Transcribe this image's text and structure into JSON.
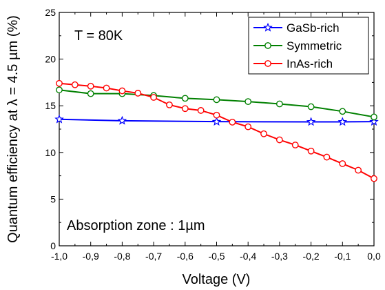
{
  "chart_data": {
    "type": "line",
    "xlabel": "Voltage (V)",
    "ylabel": "Quantum efficiency at λ = 4.5 µm (%)",
    "xlim": [
      -1.0,
      0.0
    ],
    "ylim": [
      0,
      25
    ],
    "xticks": [
      -1.0,
      -0.9,
      -0.8,
      -0.7,
      -0.6,
      -0.5,
      -0.4,
      -0.3,
      -0.2,
      -0.1,
      0.0
    ],
    "xtick_labels": [
      "-1,0",
      "-0,9",
      "-0,8",
      "-0,7",
      "-0,6",
      "-0,5",
      "-0,4",
      "-0,3",
      "-0,2",
      "-0,1",
      "0,0"
    ],
    "yticks": [
      0,
      5,
      10,
      15,
      20,
      25
    ],
    "ytick_labels": [
      "0",
      "5",
      "10",
      "15",
      "20",
      "25"
    ],
    "grid": false,
    "legend_position": "top-right",
    "annotations": [
      "T = 80K",
      "Absorption zone : 1µm"
    ],
    "series": [
      {
        "name": "GaSb-rich",
        "color": "#0000ff",
        "marker": "star",
        "line": [
          [
            -1.0,
            13.55
          ],
          [
            -0.8,
            13.4
          ],
          [
            -0.5,
            13.3
          ],
          [
            -0.2,
            13.28
          ],
          [
            -0.1,
            13.28
          ],
          [
            0.0,
            13.3
          ]
        ],
        "points": [
          [
            -1.0,
            13.55
          ],
          [
            -0.8,
            13.4
          ],
          [
            -0.5,
            13.3
          ],
          [
            -0.2,
            13.28
          ],
          [
            -0.1,
            13.28
          ],
          [
            0.0,
            13.3
          ]
        ]
      },
      {
        "name": "Symmetric",
        "color": "#008000",
        "marker": "circle",
        "line": [
          [
            -1.0,
            16.7
          ],
          [
            -0.9,
            16.3
          ],
          [
            -0.8,
            16.3
          ],
          [
            -0.7,
            16.1
          ],
          [
            -0.6,
            15.8
          ],
          [
            -0.5,
            15.65
          ],
          [
            -0.4,
            15.45
          ],
          [
            -0.3,
            15.2
          ],
          [
            -0.2,
            14.9
          ],
          [
            -0.1,
            14.4
          ],
          [
            0.0,
            13.8
          ]
        ],
        "points": [
          [
            -1.0,
            16.7
          ],
          [
            -0.9,
            16.3
          ],
          [
            -0.8,
            16.3
          ],
          [
            -0.7,
            16.1
          ],
          [
            -0.6,
            15.8
          ],
          [
            -0.5,
            15.65
          ],
          [
            -0.4,
            15.45
          ],
          [
            -0.3,
            15.2
          ],
          [
            -0.2,
            14.9
          ],
          [
            -0.1,
            14.4
          ],
          [
            0.0,
            13.8
          ]
        ]
      },
      {
        "name": "InAs-rich",
        "color": "#ff0000",
        "marker": "circle",
        "line": [
          [
            -1.0,
            17.4
          ],
          [
            -0.95,
            17.25
          ],
          [
            -0.9,
            17.1
          ],
          [
            -0.85,
            16.9
          ],
          [
            -0.8,
            16.6
          ],
          [
            -0.75,
            16.35
          ],
          [
            -0.7,
            15.9
          ],
          [
            -0.65,
            15.1
          ],
          [
            -0.6,
            14.7
          ],
          [
            -0.55,
            14.5
          ],
          [
            -0.5,
            14.0
          ],
          [
            -0.45,
            13.25
          ],
          [
            -0.4,
            12.75
          ],
          [
            -0.35,
            12.0
          ],
          [
            -0.3,
            11.35
          ],
          [
            -0.25,
            10.8
          ],
          [
            -0.2,
            10.15
          ],
          [
            -0.15,
            9.5
          ],
          [
            -0.1,
            8.8
          ],
          [
            -0.05,
            8.1
          ],
          [
            0.0,
            7.2
          ]
        ],
        "points": [
          [
            -1.0,
            17.4
          ],
          [
            -0.95,
            17.25
          ],
          [
            -0.9,
            17.1
          ],
          [
            -0.85,
            16.9
          ],
          [
            -0.8,
            16.6
          ],
          [
            -0.75,
            16.35
          ],
          [
            -0.7,
            15.9
          ],
          [
            -0.65,
            15.1
          ],
          [
            -0.6,
            14.7
          ],
          [
            -0.55,
            14.5
          ],
          [
            -0.5,
            14.0
          ],
          [
            -0.45,
            13.25
          ],
          [
            -0.4,
            12.75
          ],
          [
            -0.35,
            12.0
          ],
          [
            -0.3,
            11.35
          ],
          [
            -0.25,
            10.8
          ],
          [
            -0.2,
            10.15
          ],
          [
            -0.15,
            9.5
          ],
          [
            -0.1,
            8.8
          ],
          [
            -0.05,
            8.1
          ],
          [
            0.0,
            7.2
          ]
        ]
      }
    ]
  }
}
